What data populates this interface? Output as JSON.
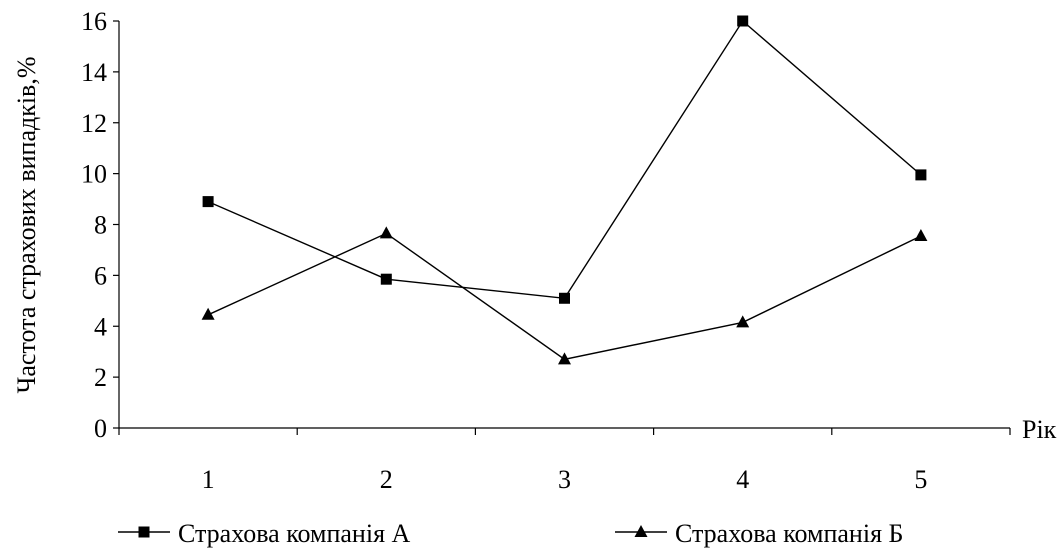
{
  "chart_data": {
    "type": "line",
    "categories": [
      "1",
      "2",
      "3",
      "4",
      "5"
    ],
    "xlabel": "Рік",
    "ylabel": "Частота страхових випадків,%",
    "ylim": [
      0,
      16
    ],
    "yticks": [
      "0",
      "2",
      "4",
      "6",
      "8",
      "10",
      "12",
      "14",
      "16"
    ],
    "grid": false,
    "legend_position": "bottom",
    "series": [
      {
        "name": "Страхова компанія А",
        "marker": "square",
        "color": "#000000",
        "values": [
          8.9,
          5.85,
          5.1,
          16.0,
          9.95
        ]
      },
      {
        "name": "Страхова компанія Б",
        "marker": "triangle",
        "color": "#000000",
        "values": [
          4.45,
          7.65,
          2.7,
          4.15,
          7.55
        ]
      }
    ]
  }
}
